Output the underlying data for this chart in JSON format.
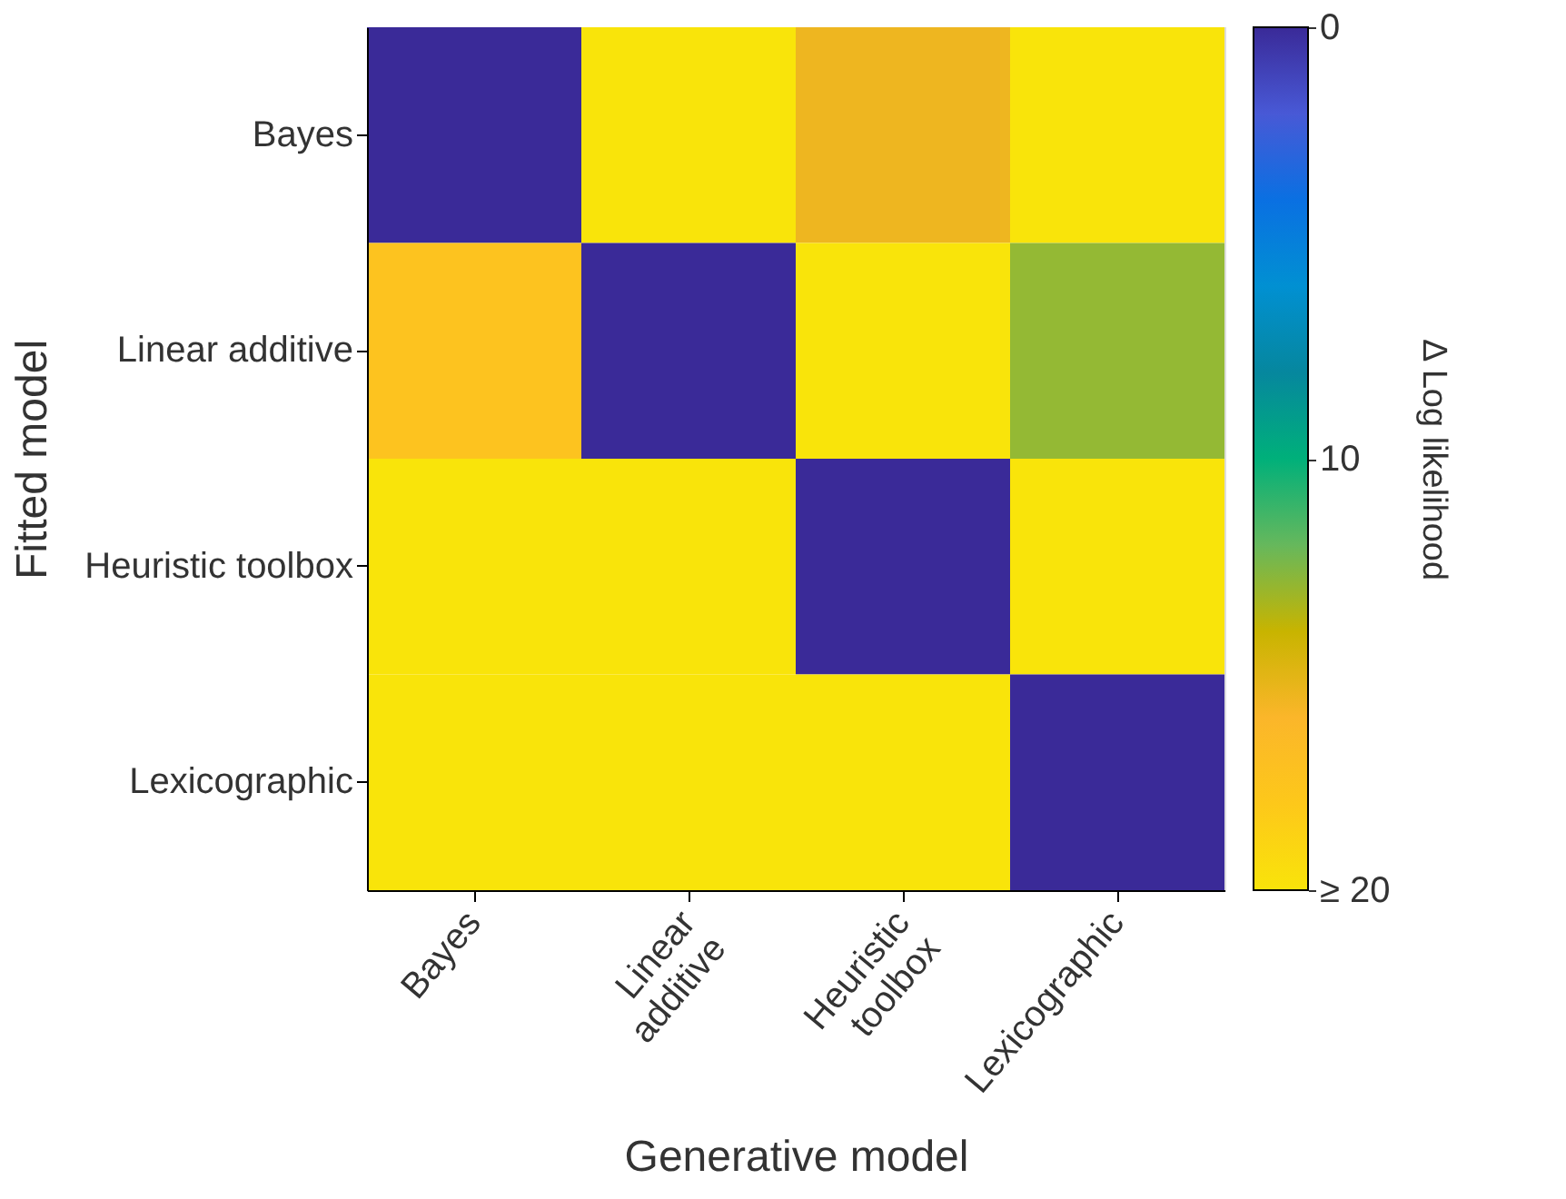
{
  "chart_data": {
    "type": "heatmap",
    "xlabel": "Generative model",
    "ylabel": "Fitted model",
    "clabel": "Δ Log likelihood",
    "categories": [
      "Bayes",
      "Linear additive",
      "Heuristic toolbox",
      "Lexicographic"
    ],
    "y_categories": [
      "Bayes",
      "Linear additive",
      "Heuristic toolbox",
      "Lexicographic"
    ],
    "cells": [
      [
        0,
        20,
        15.5,
        20
      ],
      [
        17.5,
        0,
        20,
        13
      ],
      [
        20,
        20,
        0,
        20
      ],
      [
        20,
        20,
        20,
        0
      ]
    ],
    "clim": [
      0,
      20
    ],
    "cticks": [
      0,
      10,
      {
        "value": 20,
        "label": "≥ 20"
      }
    ]
  }
}
